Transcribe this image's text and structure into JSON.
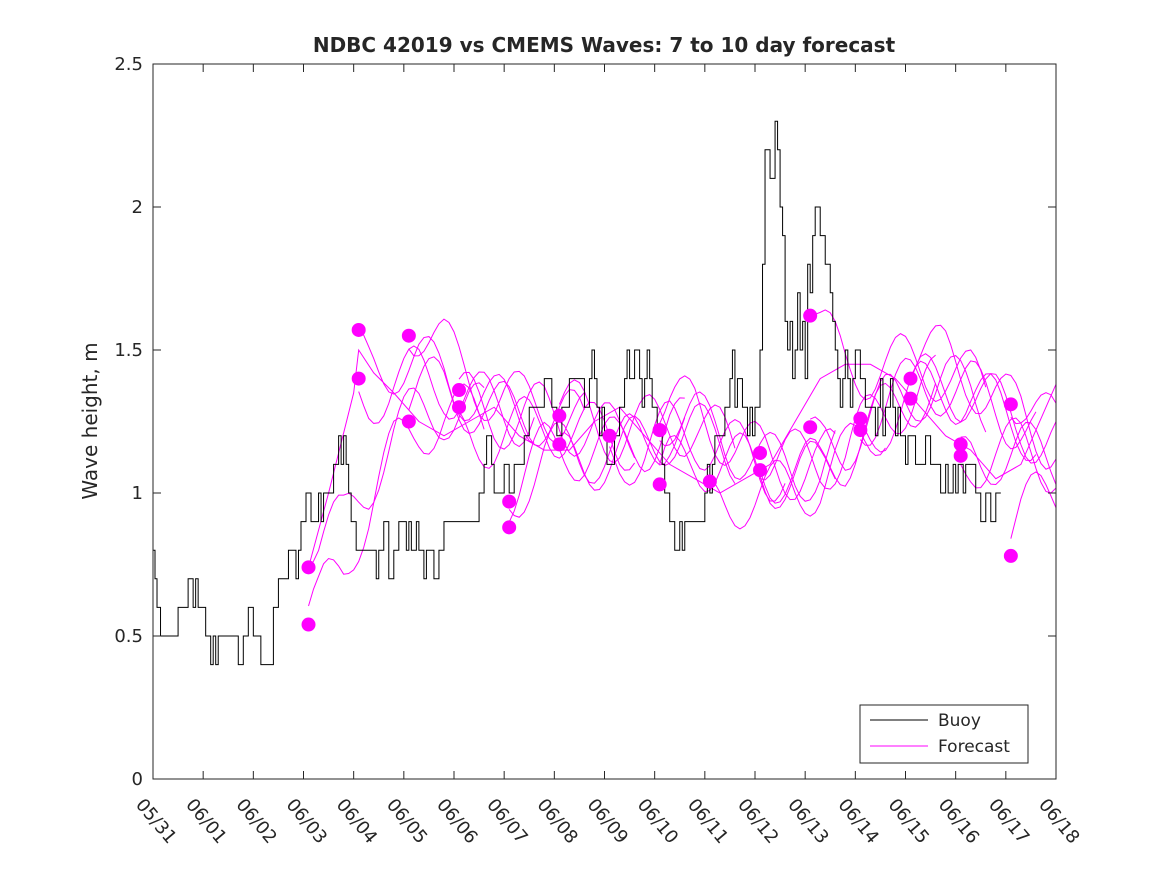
{
  "chart_data": {
    "type": "line",
    "title": "NDBC 42019 vs CMEMS Waves: 7 to 10 day forecast",
    "xlabel": "",
    "ylabel": "Wave height, m",
    "xlim": [
      "05/31",
      "06/18"
    ],
    "ylim": [
      0,
      2.5
    ],
    "x_ticks": [
      "05/31",
      "06/01",
      "06/02",
      "06/03",
      "06/04",
      "06/05",
      "06/06",
      "06/07",
      "06/08",
      "06/09",
      "06/10",
      "06/11",
      "06/12",
      "06/13",
      "06/14",
      "06/15",
      "06/16",
      "06/17",
      "06/18"
    ],
    "y_ticks": [
      "0",
      "0.5",
      "1",
      "1.5",
      "2",
      "2.5"
    ],
    "grid": false,
    "legend": {
      "position": "bottom-right",
      "entries": [
        "Buoy",
        "Forecast"
      ]
    },
    "colors": {
      "buoy": "#000000",
      "forecast": "#ff00ff"
    },
    "series": [
      {
        "name": "Buoy",
        "x_days_after_0531": [
          0,
          0.04,
          0.08,
          0.1,
          0.15,
          0.2,
          0.25,
          0.3,
          0.4,
          0.5,
          0.6,
          0.7,
          0.75,
          0.8,
          0.85,
          0.9,
          0.95,
          1.0,
          1.05,
          1.08,
          1.1,
          1.15,
          1.2,
          1.25,
          1.3,
          1.35,
          1.4,
          1.45,
          1.5,
          1.55,
          1.6,
          1.7,
          1.8,
          1.9,
          2.0,
          2.05,
          2.1,
          2.15,
          2.2,
          2.3,
          2.4,
          2.45,
          2.5,
          2.55,
          2.6,
          2.7,
          2.8,
          2.85,
          2.9,
          2.95,
          3.0,
          3.05,
          3.1,
          3.15,
          3.2,
          3.25,
          3.3,
          3.35,
          3.4,
          3.5,
          3.6,
          3.7,
          3.75,
          3.8,
          3.85,
          3.9,
          3.95,
          4.0,
          4.05,
          4.1,
          4.2,
          4.3,
          4.4,
          4.45,
          4.5,
          4.6,
          4.7,
          4.8,
          4.9,
          4.95,
          5.0,
          5.05,
          5.1,
          5.15,
          5.2,
          5.25,
          5.3,
          5.4,
          5.45,
          5.5,
          5.55,
          5.6,
          5.7,
          5.8,
          5.85,
          5.9,
          6.0,
          6.1,
          6.2,
          6.3,
          6.4,
          6.5,
          6.6,
          6.65,
          6.7,
          6.75,
          6.8,
          6.85,
          6.9,
          7.0,
          7.05,
          7.1,
          7.2,
          7.3,
          7.4,
          7.5,
          7.55,
          7.6,
          7.7,
          7.8,
          7.9,
          7.95,
          8.0,
          8.05,
          8.1,
          8.15,
          8.2,
          8.3,
          8.4,
          8.5,
          8.6,
          8.65,
          8.7,
          8.75,
          8.8,
          8.85,
          8.9,
          8.95,
          9.0,
          9.05,
          9.1,
          9.2,
          9.3,
          9.4,
          9.45,
          9.5,
          9.55,
          9.6,
          9.7,
          9.75,
          9.8,
          9.85,
          9.9,
          9.95,
          10.0,
          10.05,
          10.1,
          10.15,
          10.2,
          10.3,
          10.35,
          10.4,
          10.45,
          10.5,
          10.55,
          10.6,
          10.65,
          10.7,
          10.8,
          10.9,
          11.0,
          11.05,
          11.1,
          11.15,
          11.2,
          11.3,
          11.4,
          11.45,
          11.5,
          11.55,
          11.6,
          11.65,
          11.7,
          11.75,
          11.8,
          11.85,
          11.9,
          11.95,
          12.0,
          12.05,
          12.1,
          12.15,
          12.2,
          12.3,
          12.4,
          12.45,
          12.5,
          12.55,
          12.6,
          12.65,
          12.7,
          12.75,
          12.8,
          12.85,
          12.9,
          12.95,
          13.0,
          13.05,
          13.1,
          13.15,
          13.2,
          13.3,
          13.4,
          13.45,
          13.5,
          13.55,
          13.6,
          13.65,
          13.7,
          13.75,
          13.8,
          13.85,
          13.9,
          13.95,
          14.0,
          14.1,
          14.2,
          14.3,
          14.4,
          14.45,
          14.5,
          14.55,
          14.6,
          14.7,
          14.75,
          14.8,
          14.85,
          14.9,
          14.95,
          15.0,
          15.05,
          15.1,
          15.2,
          15.3,
          15.4,
          15.5,
          15.6,
          15.7,
          15.8,
          15.85,
          15.9,
          15.95,
          16.0,
          16.05,
          16.1,
          16.15,
          16.2,
          16.3,
          16.4,
          16.5,
          16.6,
          16.7,
          16.8,
          16.9,
          17.0,
          17.05,
          17.1,
          17.15,
          17.2
        ],
        "values": [
          0.8,
          0.7,
          0.6,
          0.6,
          0.5,
          0.5,
          0.5,
          0.5,
          0.5,
          0.6,
          0.6,
          0.7,
          0.7,
          0.6,
          0.7,
          0.6,
          0.6,
          0.6,
          0.5,
          0.5,
          0.5,
          0.4,
          0.5,
          0.4,
          0.5,
          0.5,
          0.5,
          0.5,
          0.5,
          0.5,
          0.5,
          0.4,
          0.5,
          0.6,
          0.5,
          0.5,
          0.5,
          0.4,
          0.4,
          0.4,
          0.6,
          0.6,
          0.7,
          0.7,
          0.7,
          0.8,
          0.8,
          0.7,
          0.8,
          0.9,
          0.9,
          1.0,
          1.0,
          0.9,
          0.9,
          0.9,
          1.0,
          0.9,
          1.0,
          1.0,
          1.1,
          1.2,
          1.1,
          1.2,
          1.1,
          1.0,
          0.9,
          0.9,
          0.8,
          0.8,
          0.8,
          0.8,
          0.8,
          0.7,
          0.8,
          0.9,
          0.7,
          0.8,
          0.9,
          0.9,
          0.9,
          0.8,
          0.9,
          0.8,
          0.8,
          0.9,
          0.8,
          0.7,
          0.8,
          0.8,
          0.8,
          0.7,
          0.8,
          0.9,
          0.9,
          0.9,
          0.9,
          0.9,
          0.9,
          0.9,
          0.9,
          1.0,
          1.1,
          1.2,
          1.2,
          1.1,
          1.0,
          1.0,
          1.0,
          1.1,
          1.1,
          1.0,
          1.1,
          1.1,
          1.2,
          1.3,
          1.3,
          1.3,
          1.3,
          1.4,
          1.4,
          1.3,
          1.3,
          1.2,
          1.2,
          1.3,
          1.3,
          1.4,
          1.4,
          1.4,
          1.3,
          1.3,
          1.4,
          1.5,
          1.4,
          1.3,
          1.2,
          1.3,
          1.2,
          1.1,
          1.1,
          1.2,
          1.3,
          1.4,
          1.5,
          1.4,
          1.4,
          1.5,
          1.4,
          1.3,
          1.4,
          1.5,
          1.4,
          1.3,
          1.3,
          1.2,
          1.2,
          1.1,
          1.0,
          0.9,
          0.9,
          0.8,
          0.8,
          0.9,
          0.8,
          0.9,
          0.9,
          0.9,
          0.9,
          0.9,
          1.0,
          1.1,
          1.0,
          1.1,
          1.2,
          1.2,
          1.3,
          1.3,
          1.4,
          1.5,
          1.3,
          1.4,
          1.4,
          1.3,
          1.3,
          1.2,
          1.3,
          1.2,
          1.3,
          1.3,
          1.5,
          1.8,
          2.2,
          2.1,
          2.3,
          2.2,
          2.0,
          1.9,
          1.6,
          1.5,
          1.6,
          1.4,
          1.5,
          1.7,
          1.5,
          1.6,
          1.4,
          1.8,
          1.7,
          1.9,
          2.0,
          1.9,
          1.8,
          1.8,
          1.7,
          1.6,
          1.5,
          1.4,
          1.3,
          1.4,
          1.5,
          1.4,
          1.3,
          1.4,
          1.5,
          1.4,
          1.3,
          1.3,
          1.2,
          1.3,
          1.4,
          1.2,
          1.3,
          1.4,
          1.3,
          1.2,
          1.3,
          1.2,
          1.2,
          1.1,
          1.2,
          1.2,
          1.1,
          1.1,
          1.2,
          1.1,
          1.1,
          1.0,
          1.1,
          1.0,
          1.0,
          1.1,
          1.0,
          1.1,
          1.1,
          1.0,
          1.1,
          1.1,
          1.0,
          0.9,
          1.0,
          0.9,
          1.0
        ]
      },
      {
        "name": "Forecast",
        "x_days_after_0531": [
          3.1,
          3.5,
          4.0,
          4.1,
          4.4,
          4.8,
          5.3,
          5.8,
          6.3,
          6.8,
          7.3,
          7.8,
          8.3,
          8.8,
          9.3,
          9.8,
          10.3,
          10.8,
          11.3,
          11.8,
          12.3,
          12.8,
          13.3,
          13.8,
          14.3,
          14.8,
          15.3,
          15.8,
          16.3,
          16.8,
          17.3,
          17.8,
          18.0
        ],
        "values": [
          0.74,
          1.0,
          1.35,
          1.5,
          1.42,
          1.35,
          1.25,
          1.2,
          1.25,
          1.3,
          1.2,
          1.15,
          1.15,
          1.25,
          1.3,
          1.2,
          1.1,
          1.05,
          1.0,
          1.05,
          1.1,
          1.25,
          1.4,
          1.45,
          1.45,
          1.4,
          1.3,
          1.2,
          1.15,
          1.05,
          1.1,
          1.3,
          1.38
        ]
      }
    ],
    "forecast_start_points": {
      "x_days_after_0531": [
        3.1,
        3.1,
        4.1,
        4.1,
        5.1,
        5.1,
        6.1,
        6.1,
        7.1,
        7.1,
        8.1,
        8.1,
        9.1,
        10.1,
        10.1,
        10.1,
        11.1,
        12.1,
        12.1,
        13.1,
        13.1,
        14.1,
        14.1,
        15.1,
        15.1,
        16.1,
        16.1,
        17.1,
        17.1
      ],
      "values": [
        0.74,
        0.54,
        1.57,
        1.4,
        1.55,
        1.25,
        1.36,
        1.3,
        0.97,
        0.88,
        1.27,
        1.17,
        1.2,
        1.22,
        1.22,
        1.03,
        1.04,
        1.14,
        1.08,
        1.62,
        1.23,
        1.26,
        1.22,
        1.4,
        1.33,
        1.17,
        1.13,
        1.31,
        0.78
      ]
    }
  }
}
